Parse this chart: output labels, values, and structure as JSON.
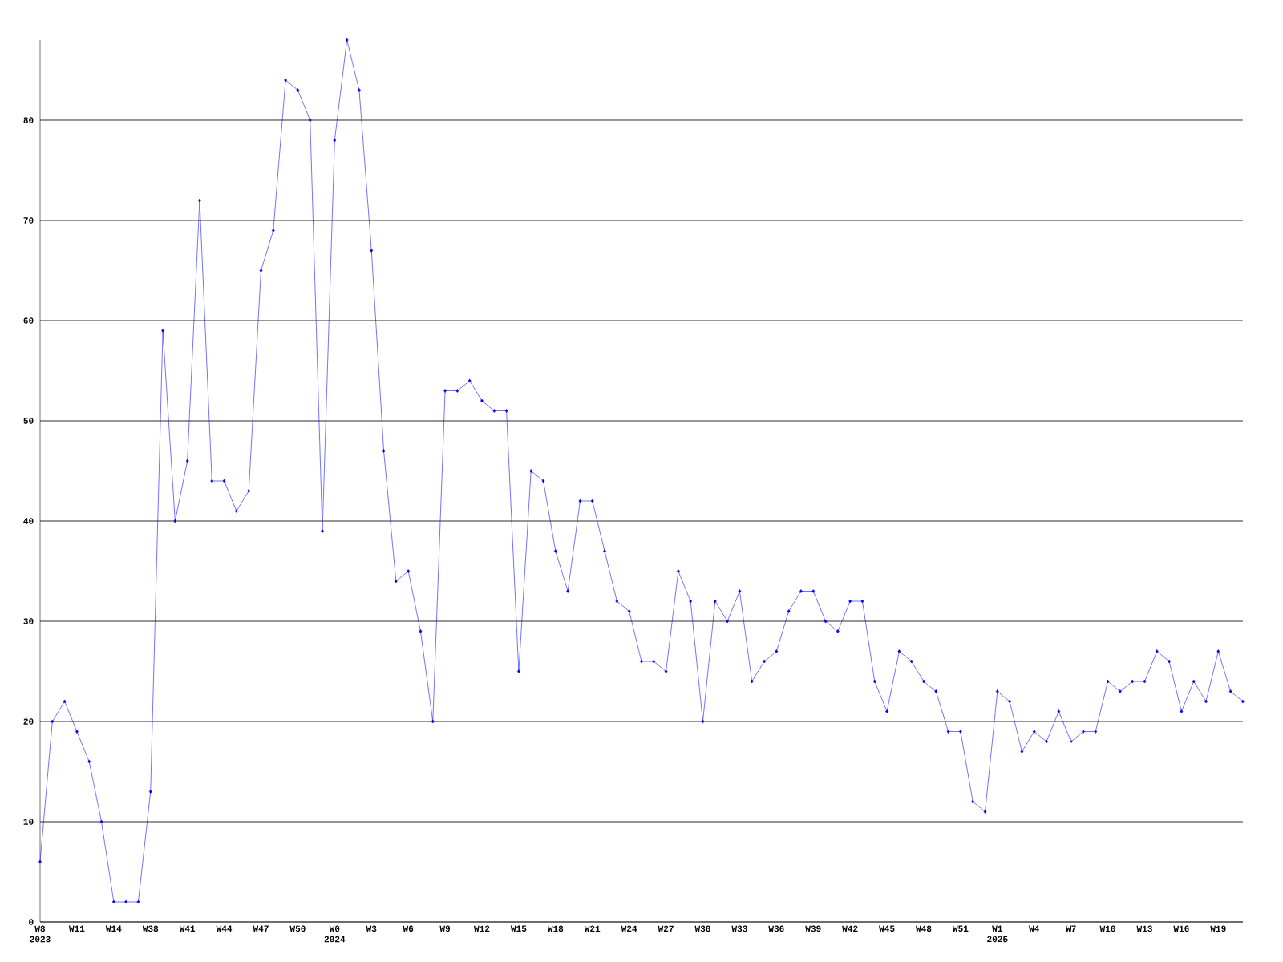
{
  "chart_data": {
    "type": "line",
    "categories": [
      "W8 2023",
      null,
      null,
      "W11",
      null,
      null,
      "W14",
      null,
      null,
      "W38",
      null,
      null,
      "W41",
      null,
      null,
      "W44",
      null,
      null,
      "W47",
      null,
      null,
      "W50",
      null,
      null,
      "W0 2024",
      null,
      null,
      "W3",
      null,
      null,
      "W6",
      null,
      null,
      "W9",
      null,
      null,
      "W12",
      null,
      null,
      "W15",
      null,
      null,
      "W18",
      null,
      null,
      "W21",
      null,
      null,
      "W24",
      null,
      null,
      "W27",
      null,
      null,
      "W30",
      null,
      null,
      "W33",
      null,
      null,
      "W36",
      null,
      null,
      "W39",
      null,
      null,
      "W42",
      null,
      null,
      "W45",
      null,
      null,
      "W48",
      null,
      null,
      "W51",
      null,
      null,
      "W1 2025",
      null,
      null,
      "W4",
      null,
      null,
      "W7",
      null,
      null,
      "W10",
      null,
      null,
      "W13",
      null,
      null,
      "W16",
      null,
      null,
      "W19",
      null,
      null
    ],
    "values": [
      6,
      20,
      22,
      19,
      16,
      10,
      2,
      2,
      2,
      13,
      59,
      40,
      46,
      72,
      44,
      44,
      41,
      43,
      65,
      69,
      84,
      83,
      80,
      39,
      78,
      88,
      83,
      67,
      47,
      34,
      35,
      29,
      20,
      53,
      53,
      54,
      52,
      51,
      51,
      25,
      45,
      44,
      37,
      33,
      42,
      42,
      37,
      32,
      31,
      26,
      26,
      25,
      35,
      32,
      20,
      32,
      30,
      33,
      24,
      26,
      27,
      31,
      33,
      33,
      30,
      29,
      32,
      32,
      24,
      21,
      27,
      26,
      24,
      23,
      19,
      19,
      12,
      11,
      23,
      22,
      17,
      19,
      18,
      21,
      18,
      19,
      19,
      24,
      23,
      24,
      24,
      27,
      26,
      21,
      24,
      22,
      27,
      23,
      22
    ],
    "color": "#0000ff",
    "marker": "diamond",
    "line_style": "solid",
    "grid": "y",
    "ylim": [
      0,
      88
    ],
    "yticks": [
      0,
      10,
      20,
      30,
      40,
      50,
      60,
      70,
      80
    ]
  }
}
